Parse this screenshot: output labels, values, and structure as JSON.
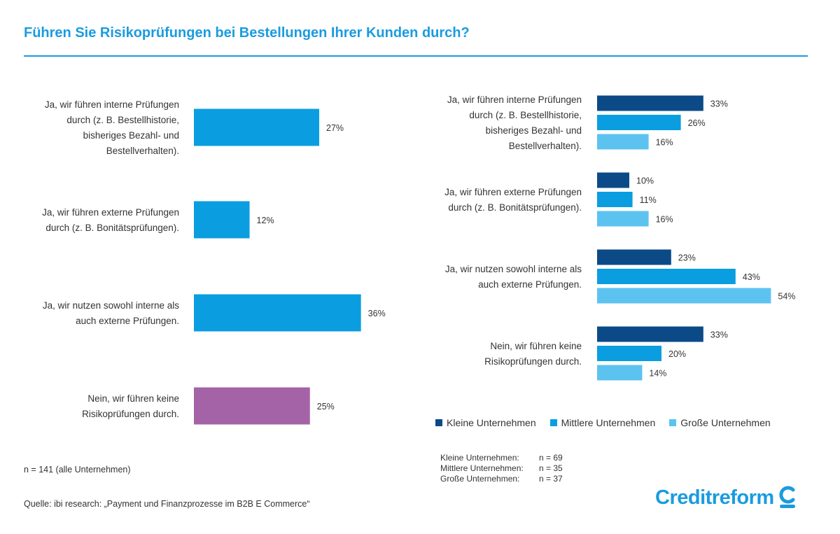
{
  "title": "Führen Sie Risikoprüfungen bei Bestellungen Ihrer Kunden durch?",
  "colors": {
    "title": "#1a9be0",
    "overall": "#0a9ee0",
    "nein_overall": "#a563a7",
    "kleine": "#0b4a87",
    "mittlere": "#0a9ee0",
    "grosse": "#5cc3f0"
  },
  "chart_data": [
    {
      "type": "bar",
      "orientation": "horizontal",
      "categories": [
        [
          "Ja, wir führen interne Prüfungen",
          "durch (z. B. Bestellhistorie,",
          "bisheriges Bezahl- und",
          "Bestellverhalten)."
        ],
        [
          "Ja, wir führen externe Prüfungen",
          "durch (z. B. Bonitätsprüfungen)."
        ],
        [
          "Ja, wir nutzen sowohl interne als",
          "auch externe Prüfungen."
        ],
        [
          "Nein, wir führen keine",
          "Risikoprüfungen durch."
        ]
      ],
      "values": [
        27,
        12,
        36,
        25
      ],
      "value_labels": [
        "27%",
        "12%",
        "36%",
        "25%"
      ],
      "unit": "%"
    },
    {
      "type": "bar",
      "orientation": "horizontal",
      "categories": [
        [
          "Ja, wir führen interne Prüfungen",
          "durch (z. B. Bestellhistorie,",
          "bisheriges Bezahl- und",
          "Bestellverhalten)."
        ],
        [
          "Ja, wir führen externe Prüfungen",
          "durch (z. B. Bonitätsprüfungen)."
        ],
        [
          "Ja, wir nutzen sowohl interne als",
          "auch externe Prüfungen."
        ],
        [
          "Nein, wir führen keine",
          "Risikoprüfungen durch."
        ]
      ],
      "series": [
        {
          "name": "Kleine Unternehmen",
          "values": [
            33,
            10,
            23,
            33
          ],
          "value_labels": [
            "33%",
            "10%",
            "23%",
            "33%"
          ]
        },
        {
          "name": "Mittlere Unternehmen",
          "values": [
            26,
            11,
            43,
            20
          ],
          "value_labels": [
            "26%",
            "11%",
            "43%",
            "20%"
          ]
        },
        {
          "name": "Große Unternehmen",
          "values": [
            16,
            16,
            54,
            14
          ],
          "value_labels": [
            "16%",
            "16%",
            "54%",
            "14%"
          ]
        }
      ],
      "legend_position": "bottom",
      "unit": "%"
    }
  ],
  "footnotes": {
    "n_all": "n = 141 (alle Unternehmen)",
    "n_table": [
      {
        "label": "Kleine Unternehmen:",
        "value": "n = 69"
      },
      {
        "label": "Mittlere Unternehmen:",
        "value": "n = 35"
      },
      {
        "label": "Große Unternehmen:",
        "value": "n = 37"
      }
    ],
    "source": "Quelle: ibi research: „Payment und Finanzprozesse im B2B E Commerce“"
  },
  "logo_text": "Creditreform"
}
